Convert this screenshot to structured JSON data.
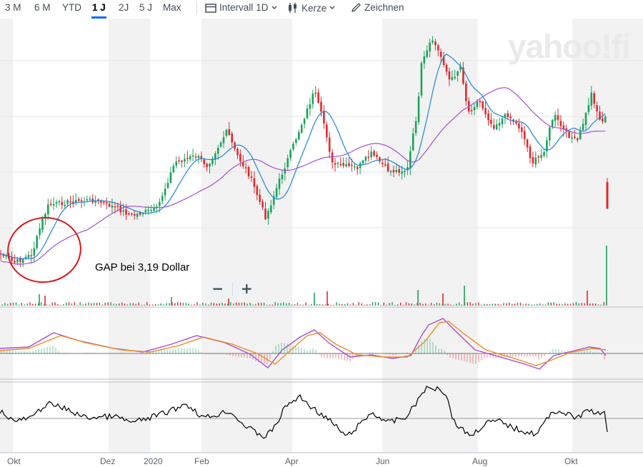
{
  "toolbar": {
    "ranges": [
      "3 M",
      "6 M",
      "YTD",
      "1 J",
      "2J",
      "5 J",
      "Max"
    ],
    "active_range": "1 J",
    "interval_label": "Intervall",
    "interval_value": "1D",
    "chart_type_label": "Kerze",
    "draw_label": "Zeichnen"
  },
  "watermark": "yahoo!fi",
  "annotation": "GAP bei 3,19 Dollar",
  "zoom": {
    "minus": "−",
    "plus": "+"
  },
  "colors": {
    "up": "#1aa35a",
    "down": "#e0292e",
    "ma20": "#1e88d8",
    "ma50": "#a74fd4",
    "macd": "#a74fd4",
    "signal": "#f08a24",
    "circle": "#d8171b",
    "oscillator": "#000000"
  },
  "chart_data": {
    "type": "candlestick",
    "x_labels": [
      "Okt",
      "Dez",
      "2020",
      "Feb",
      "Apr",
      "Jun",
      "Aug",
      "Okt"
    ],
    "series": [
      {
        "type": "candlestick",
        "close_path": [
          [
            0,
            355
          ],
          [
            20,
            368
          ],
          [
            45,
            356
          ],
          [
            58,
            312
          ],
          [
            68,
            287
          ],
          [
            95,
            283
          ],
          [
            130,
            280
          ],
          [
            155,
            288
          ],
          [
            185,
            302
          ],
          [
            220,
            292
          ],
          [
            245,
            227
          ],
          [
            275,
            218
          ],
          [
            290,
            232
          ],
          [
            318,
            183
          ],
          [
            330,
            214
          ],
          [
            350,
            247
          ],
          [
            372,
            305
          ],
          [
            392,
            250
          ],
          [
            412,
            200
          ],
          [
            440,
            128
          ],
          [
            455,
            178
          ],
          [
            465,
            230
          ],
          [
            500,
            235
          ],
          [
            520,
            215
          ],
          [
            545,
            240
          ],
          [
            570,
            238
          ],
          [
            585,
            150
          ],
          [
            590,
            90
          ],
          [
            605,
            55
          ],
          [
            620,
            85
          ],
          [
            630,
            115
          ],
          [
            645,
            92
          ],
          [
            655,
            158
          ],
          [
            670,
            140
          ],
          [
            690,
            178
          ],
          [
            710,
            160
          ],
          [
            730,
            182
          ],
          [
            745,
            228
          ],
          [
            760,
            215
          ],
          [
            775,
            160
          ],
          [
            790,
            185
          ],
          [
            808,
            198
          ],
          [
            820,
            160
          ],
          [
            828,
            130
          ],
          [
            840,
            170
          ],
          [
            848,
            165
          ]
        ]
      },
      {
        "type": "volume",
        "spikes": [
          [
            55,
            16
          ],
          [
            63,
            14
          ],
          [
            240,
            12
          ],
          [
            320,
            14
          ],
          [
            440,
            18
          ],
          [
            458,
            20
          ],
          [
            585,
            22
          ],
          [
            620,
            17
          ],
          [
            650,
            28
          ],
          [
            822,
            21
          ],
          [
            849,
            84
          ]
        ]
      },
      {
        "type": "line",
        "name": "MA20"
      },
      {
        "type": "line",
        "name": "MA50"
      },
      {
        "type": "macd",
        "macd_path": [
          [
            0,
            488
          ],
          [
            40,
            486
          ],
          [
            75,
            466
          ],
          [
            110,
            477
          ],
          [
            160,
            488
          ],
          [
            200,
            493
          ],
          [
            240,
            482
          ],
          [
            275,
            470
          ],
          [
            315,
            480
          ],
          [
            350,
            496
          ],
          [
            375,
            515
          ],
          [
            395,
            490
          ],
          [
            420,
            472
          ],
          [
            440,
            462
          ],
          [
            460,
            480
          ],
          [
            490,
            500
          ],
          [
            520,
            497
          ],
          [
            550,
            502
          ],
          [
            575,
            498
          ],
          [
            590,
            470
          ],
          [
            600,
            455
          ],
          [
            620,
            446
          ],
          [
            640,
            466
          ],
          [
            665,
            490
          ],
          [
            700,
            500
          ],
          [
            735,
            510
          ],
          [
            755,
            517
          ],
          [
            775,
            498
          ],
          [
            800,
            492
          ],
          [
            825,
            486
          ],
          [
            840,
            488
          ],
          [
            848,
            498
          ]
        ],
        "signal_path": [
          [
            0,
            491
          ],
          [
            40,
            488
          ],
          [
            85,
            470
          ],
          [
            120,
            480
          ],
          [
            170,
            490
          ],
          [
            210,
            493
          ],
          [
            250,
            484
          ],
          [
            285,
            472
          ],
          [
            325,
            482
          ],
          [
            360,
            495
          ],
          [
            385,
            510
          ],
          [
            405,
            492
          ],
          [
            430,
            470
          ],
          [
            448,
            466
          ],
          [
            470,
            482
          ],
          [
            500,
            497
          ],
          [
            540,
            500
          ],
          [
            570,
            500
          ],
          [
            595,
            478
          ],
          [
            615,
            452
          ],
          [
            628,
            450
          ],
          [
            650,
            468
          ],
          [
            680,
            490
          ],
          [
            720,
            502
          ],
          [
            750,
            512
          ],
          [
            770,
            505
          ],
          [
            800,
            493
          ],
          [
            830,
            488
          ],
          [
            848,
            490
          ]
        ]
      },
      {
        "type": "oscillator",
        "path": [
          [
            0,
            575
          ],
          [
            20,
            590
          ],
          [
            45,
            585
          ],
          [
            65,
            565
          ],
          [
            90,
            572
          ],
          [
            120,
            585
          ],
          [
            160,
            583
          ],
          [
            185,
            592
          ],
          [
            210,
            585
          ],
          [
            240,
            575
          ],
          [
            260,
            565
          ],
          [
            285,
            585
          ],
          [
            300,
            582
          ],
          [
            320,
            575
          ],
          [
            345,
            598
          ],
          [
            370,
            612
          ],
          [
            385,
            598
          ],
          [
            400,
            568
          ],
          [
            420,
            556
          ],
          [
            440,
            573
          ],
          [
            465,
            592
          ],
          [
            485,
            612
          ],
          [
            500,
            598
          ],
          [
            520,
            578
          ],
          [
            545,
            592
          ],
          [
            570,
            583
          ],
          [
            585,
            560
          ],
          [
            595,
            545
          ],
          [
            615,
            543
          ],
          [
            625,
            553
          ],
          [
            635,
            590
          ],
          [
            645,
            600
          ],
          [
            660,
            610
          ],
          [
            680,
            592
          ],
          [
            700,
            590
          ],
          [
            720,
            600
          ],
          [
            750,
            608
          ],
          [
            775,
            575
          ],
          [
            790,
            578
          ],
          [
            805,
            586
          ],
          [
            825,
            574
          ],
          [
            840,
            581
          ],
          [
            848,
            579
          ],
          [
            850,
            605
          ]
        ]
      }
    ]
  }
}
